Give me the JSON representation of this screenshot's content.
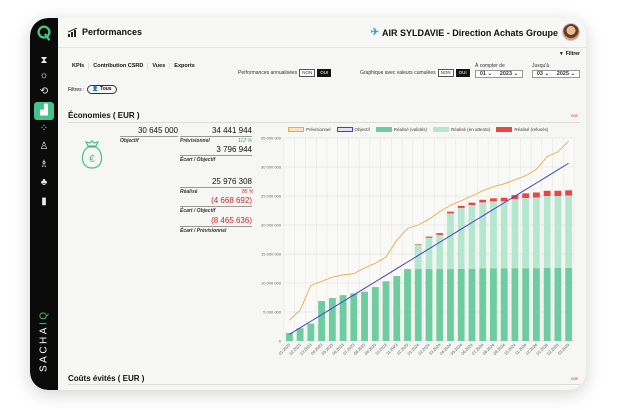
{
  "app": {
    "brand": "SACHAIQ",
    "page_title": "Performances",
    "organization": "AIR SYLDAVIE - Direction Achats Groupe",
    "filter_button": "Filtrer"
  },
  "sidebar": {
    "items": [
      {
        "icon": "hourglass-icon",
        "glyph": "⧗"
      },
      {
        "icon": "sun-icon",
        "glyph": "☼"
      },
      {
        "icon": "history-icon",
        "glyph": "⟲"
      },
      {
        "icon": "performance-chart-icon",
        "glyph": "▟",
        "active": true
      },
      {
        "icon": "team-icon",
        "glyph": "⁘"
      },
      {
        "icon": "user-list-icon",
        "glyph": "♙"
      },
      {
        "icon": "org-chart-icon",
        "glyph": "♗"
      },
      {
        "icon": "suppliers-icon",
        "glyph": "♣"
      },
      {
        "icon": "book-icon",
        "glyph": "▮"
      }
    ]
  },
  "tabs": [
    "KPIs",
    "Contribution CSRD",
    "Vues",
    "Exports"
  ],
  "toggles": {
    "annualized": {
      "label": "Performances annualisées",
      "off": "NON",
      "on": "OUI",
      "selected": "OUI"
    },
    "cumulative": {
      "label": "Graphique avec valeurs cumulées",
      "off": "NON",
      "on": "OUI",
      "selected": "OUI"
    }
  },
  "date_from": {
    "label": "À compter de",
    "month": "01",
    "year": "2023"
  },
  "date_to": {
    "label": "Jusqu'à",
    "month": "03",
    "year": "2025"
  },
  "filters": {
    "label": "Filtres :",
    "value": "Tous"
  },
  "economies": {
    "title": "Économies ( EUR )",
    "voir": "voir",
    "objectif": {
      "value": "30 645 000",
      "label": "Objectif"
    },
    "previsionnel": {
      "value": "34 441 944",
      "label": "Prévisionnel",
      "pct": "112 %"
    },
    "ecart_objectif_prev": {
      "value": "3 796 944",
      "label": "Écart / Objectif"
    },
    "realise": {
      "value": "25 976 308",
      "label": "Réalisé",
      "pct": "85 %"
    },
    "ecart_objectif_real": {
      "value": "(4 668 692)",
      "label": "Écart / Objectif"
    },
    "ecart_previsionnel": {
      "value": "(8 465 636)",
      "label": "Écart / Prévisionnel"
    }
  },
  "couts_evites": {
    "title": "Coûts évités ( EUR )",
    "voir": "voir"
  },
  "chart_data": {
    "type": "bar",
    "title": "",
    "xlabel": "",
    "ylabel": "",
    "ylim": [
      0,
      35000000
    ],
    "yticks": [
      0,
      5000000,
      10000000,
      15000000,
      20000000,
      25000000,
      30000000,
      35000000
    ],
    "ytick_labels": [
      "0",
      "5 000 000",
      "10 000 000",
      "15 000 000",
      "20 000 000",
      "25 000 000",
      "30 000 000",
      "35 000 000"
    ],
    "grid": true,
    "legend_position": "top",
    "categories": [
      "01.2023",
      "02.2023",
      "03.2023",
      "04.2023",
      "05.2023",
      "06.2023",
      "07.2023",
      "08.2023",
      "09.2023",
      "10.2023",
      "11.2023",
      "12.2023",
      "01.2024",
      "02.2024",
      "03.2024",
      "04.2024",
      "05.2024",
      "06.2024",
      "07.2024",
      "08.2024",
      "09.2024",
      "10.2024",
      "11.2024",
      "12.2024",
      "01.2025",
      "02.2025",
      "03.2025"
    ],
    "series": [
      {
        "name": "Prévisionnel",
        "kind": "line",
        "color": "#f0a94a",
        "values": [
          3600000,
          5300000,
          9600000,
          10300000,
          11000000,
          11400000,
          11600000,
          12600000,
          13400000,
          14500000,
          17400000,
          19400000,
          20000000,
          21000000,
          22300000,
          23400000,
          24200000,
          25000000,
          25900000,
          26600000,
          27100000,
          27800000,
          28500000,
          29600000,
          31800000,
          32600000,
          34441944
        ]
      },
      {
        "name": "Objectif",
        "kind": "line",
        "color": "#4a3fc4",
        "values": [
          1135000,
          2270000,
          3405000,
          4540000,
          5675000,
          6810000,
          7945000,
          9080000,
          10215000,
          11350000,
          12485000,
          13620000,
          14755000,
          15890000,
          17025000,
          18160000,
          19295000,
          20430000,
          21565000,
          22700000,
          23835000,
          24970000,
          26105000,
          27240000,
          28375000,
          29510000,
          30645000
        ]
      },
      {
        "name": "Réalisé (validés)",
        "kind": "bar",
        "color": "#6fcca0",
        "values": [
          1400000,
          2200000,
          3000000,
          6900000,
          7400000,
          7900000,
          8200000,
          8500000,
          9300000,
          10300000,
          11200000,
          12400000,
          12400000,
          12400000,
          12400000,
          12400000,
          12450000,
          12450000,
          12500000,
          12500000,
          12500000,
          12550000,
          12550000,
          12550000,
          12600000,
          12600000,
          12600000
        ]
      },
      {
        "name": "Réalisé (en attente)",
        "kind": "bar",
        "color": "#b4e6d0",
        "values": [
          0,
          0,
          0,
          0,
          0,
          0,
          0,
          0,
          0,
          0,
          0,
          0,
          4200000,
          5400000,
          5900000,
          9600000,
          10500000,
          11000000,
          11400000,
          11600000,
          11600000,
          11900000,
          12100000,
          12200000,
          12400000,
          12400000,
          12476308
        ]
      },
      {
        "name": "Réalisé (refusés)",
        "kind": "bar",
        "color": "#e84545",
        "values": [
          0,
          0,
          0,
          0,
          0,
          0,
          0,
          0,
          0,
          0,
          0,
          0,
          100000,
          200000,
          300000,
          300000,
          350000,
          400000,
          450000,
          500000,
          600000,
          700000,
          800000,
          850000,
          900000,
          900000,
          900000
        ]
      }
    ]
  }
}
